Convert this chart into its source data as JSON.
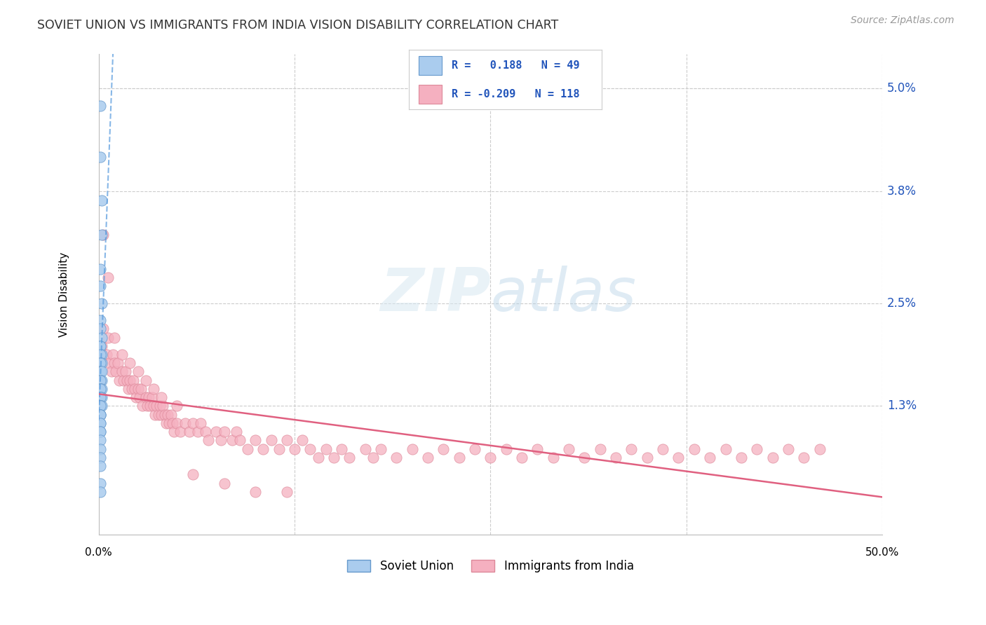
{
  "title": "SOVIET UNION VS IMMIGRANTS FROM INDIA VISION DISABILITY CORRELATION CHART",
  "source": "Source: ZipAtlas.com",
  "ylabel": "Vision Disability",
  "xlim": [
    0.0,
    0.5
  ],
  "ylim": [
    -0.002,
    0.054
  ],
  "ytick_vals": [
    0.013,
    0.025,
    0.038,
    0.05
  ],
  "ytick_labels": [
    "1.3%",
    "2.5%",
    "3.8%",
    "5.0%"
  ],
  "r_blue": 0.188,
  "n_blue": 49,
  "r_pink": -0.209,
  "n_pink": 118,
  "legend_label_blue": "Soviet Union",
  "legend_label_pink": "Immigrants from India",
  "watermark_text": "ZIPatlas",
  "blue_face": "#aaccee",
  "blue_edge": "#6699cc",
  "pink_face": "#f5b0c0",
  "pink_edge": "#dd8899",
  "trend_blue_color": "#5599dd",
  "trend_pink_color": "#e06080",
  "text_blue": "#2255bb",
  "grid_color": "#cccccc",
  "title_color": "#333333",
  "source_color": "#999999",
  "blue_scatter_x": [
    0.001,
    0.001,
    0.002,
    0.002,
    0.001,
    0.001,
    0.002,
    0.001,
    0.001,
    0.002,
    0.001,
    0.001,
    0.002,
    0.001,
    0.001,
    0.002,
    0.001,
    0.001,
    0.001,
    0.002,
    0.001,
    0.001,
    0.002,
    0.001,
    0.001,
    0.001,
    0.002,
    0.001,
    0.001,
    0.001,
    0.002,
    0.001,
    0.001,
    0.001,
    0.002,
    0.001,
    0.001,
    0.001,
    0.001,
    0.001,
    0.001,
    0.001,
    0.001,
    0.001,
    0.001,
    0.001,
    0.001,
    0.001,
    0.001
  ],
  "blue_scatter_y": [
    0.048,
    0.042,
    0.037,
    0.033,
    0.029,
    0.027,
    0.025,
    0.023,
    0.022,
    0.021,
    0.02,
    0.02,
    0.019,
    0.019,
    0.018,
    0.018,
    0.018,
    0.017,
    0.017,
    0.017,
    0.016,
    0.016,
    0.016,
    0.016,
    0.015,
    0.015,
    0.015,
    0.015,
    0.014,
    0.014,
    0.014,
    0.014,
    0.013,
    0.013,
    0.013,
    0.013,
    0.012,
    0.012,
    0.012,
    0.011,
    0.011,
    0.01,
    0.01,
    0.009,
    0.008,
    0.007,
    0.006,
    0.004,
    0.003
  ],
  "pink_scatter_x": [
    0.002,
    0.003,
    0.005,
    0.006,
    0.007,
    0.008,
    0.009,
    0.01,
    0.011,
    0.012,
    0.013,
    0.015,
    0.016,
    0.017,
    0.018,
    0.019,
    0.02,
    0.021,
    0.022,
    0.023,
    0.024,
    0.025,
    0.026,
    0.027,
    0.028,
    0.03,
    0.031,
    0.032,
    0.033,
    0.034,
    0.035,
    0.036,
    0.037,
    0.038,
    0.039,
    0.04,
    0.041,
    0.042,
    0.043,
    0.044,
    0.045,
    0.046,
    0.047,
    0.048,
    0.05,
    0.052,
    0.055,
    0.058,
    0.06,
    0.063,
    0.065,
    0.068,
    0.07,
    0.075,
    0.078,
    0.08,
    0.085,
    0.088,
    0.09,
    0.095,
    0.1,
    0.105,
    0.11,
    0.115,
    0.12,
    0.125,
    0.13,
    0.135,
    0.14,
    0.145,
    0.15,
    0.155,
    0.16,
    0.17,
    0.175,
    0.18,
    0.19,
    0.2,
    0.21,
    0.22,
    0.23,
    0.24,
    0.25,
    0.26,
    0.27,
    0.28,
    0.29,
    0.3,
    0.31,
    0.32,
    0.33,
    0.34,
    0.35,
    0.36,
    0.37,
    0.38,
    0.39,
    0.4,
    0.41,
    0.42,
    0.43,
    0.44,
    0.45,
    0.46,
    0.003,
    0.006,
    0.01,
    0.015,
    0.02,
    0.025,
    0.03,
    0.035,
    0.04,
    0.05,
    0.06,
    0.08,
    0.1,
    0.12
  ],
  "pink_scatter_y": [
    0.02,
    0.022,
    0.019,
    0.021,
    0.018,
    0.017,
    0.019,
    0.018,
    0.017,
    0.018,
    0.016,
    0.017,
    0.016,
    0.017,
    0.016,
    0.015,
    0.016,
    0.015,
    0.016,
    0.015,
    0.014,
    0.015,
    0.014,
    0.015,
    0.013,
    0.014,
    0.013,
    0.014,
    0.013,
    0.014,
    0.013,
    0.012,
    0.013,
    0.012,
    0.013,
    0.012,
    0.013,
    0.012,
    0.011,
    0.012,
    0.011,
    0.012,
    0.011,
    0.01,
    0.011,
    0.01,
    0.011,
    0.01,
    0.011,
    0.01,
    0.011,
    0.01,
    0.009,
    0.01,
    0.009,
    0.01,
    0.009,
    0.01,
    0.009,
    0.008,
    0.009,
    0.008,
    0.009,
    0.008,
    0.009,
    0.008,
    0.009,
    0.008,
    0.007,
    0.008,
    0.007,
    0.008,
    0.007,
    0.008,
    0.007,
    0.008,
    0.007,
    0.008,
    0.007,
    0.008,
    0.007,
    0.008,
    0.007,
    0.008,
    0.007,
    0.008,
    0.007,
    0.008,
    0.007,
    0.008,
    0.007,
    0.008,
    0.007,
    0.008,
    0.007,
    0.008,
    0.007,
    0.008,
    0.007,
    0.008,
    0.007,
    0.008,
    0.007,
    0.008,
    0.033,
    0.028,
    0.021,
    0.019,
    0.018,
    0.017,
    0.016,
    0.015,
    0.014,
    0.013,
    0.005,
    0.004,
    0.003,
    0.003
  ]
}
